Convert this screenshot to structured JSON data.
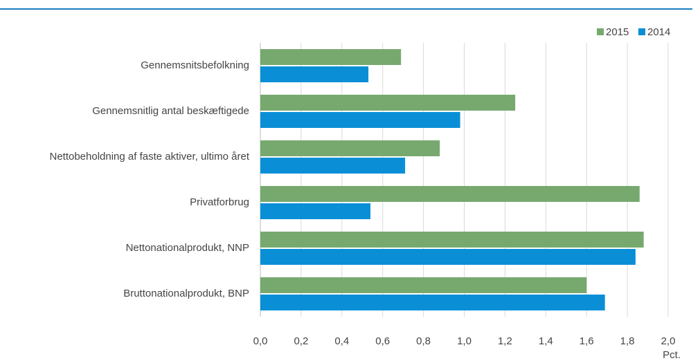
{
  "chart_data": {
    "type": "barh",
    "categories": [
      "Gennemsnitsbefolkning",
      "Gennemsnitlig antal beskæftigede",
      "Nettobeholdning af faste aktiver, ultimo året",
      "Privatforbrug",
      "Nettonationalprodukt, NNP",
      "Bruttonationalprodukt, BNP"
    ],
    "series": [
      {
        "name": "2015",
        "color": "#77a96f",
        "values": [
          0.69,
          1.25,
          0.88,
          1.86,
          1.88,
          1.6
        ]
      },
      {
        "name": "2014",
        "color": "#0a8fd6",
        "values": [
          0.53,
          0.98,
          0.71,
          0.54,
          1.84,
          1.69
        ]
      }
    ],
    "xlabel": "Pct.",
    "xlim": [
      0,
      2
    ],
    "xticks": [
      {
        "value": 0,
        "label": "0,0"
      },
      {
        "value": 0.2,
        "label": "0,2"
      },
      {
        "value": 0.4,
        "label": "0,4"
      },
      {
        "value": 0.6,
        "label": "0,6"
      },
      {
        "value": 0.8,
        "label": "0,8"
      },
      {
        "value": 1.0,
        "label": "1,0"
      },
      {
        "value": 1.2,
        "label": "1,2"
      },
      {
        "value": 1.4,
        "label": "1,4"
      },
      {
        "value": 1.6,
        "label": "1,6"
      },
      {
        "value": 1.8,
        "label": "1,8"
      },
      {
        "value": 2.0,
        "label": "2,0"
      }
    ],
    "grid": true,
    "legend": "top-right"
  }
}
